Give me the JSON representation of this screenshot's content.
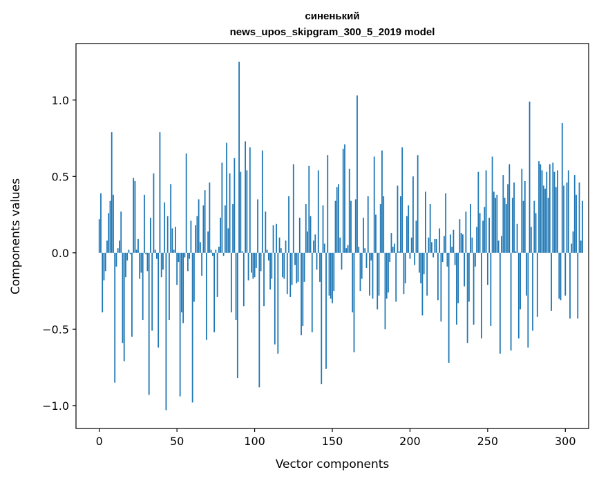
{
  "chart_data": {
    "type": "bar",
    "title": [
      "синенький",
      "news_upos_skipgram_300_5_2019 model"
    ],
    "xlabel": "Vector components",
    "ylabel": "Components values",
    "xlim": [
      -15,
      315
    ],
    "ylim": [
      -1.15,
      1.37
    ],
    "xticks": [
      0,
      50,
      100,
      150,
      200,
      250,
      300
    ],
    "yticks": [
      -1.0,
      -0.5,
      0.0,
      0.5,
      1.0
    ],
    "ytick_labels": [
      "−1.0",
      "−0.5",
      "0.0",
      "0.5",
      "1.0"
    ],
    "bar_color": "#1f77b4",
    "grid": false,
    "legend": "none",
    "x_start": 0,
    "values": [
      0.22,
      0.39,
      -0.39,
      -0.18,
      -0.12,
      0.08,
      0.26,
      0.34,
      0.79,
      0.38,
      -0.85,
      -0.09,
      0.03,
      0.08,
      0.27,
      -0.59,
      -0.71,
      -0.16,
      -0.05,
      0.02,
      -0.01,
      -0.55,
      0.49,
      0.47,
      0.02,
      0.09,
      -0.17,
      -0.13,
      -0.44,
      0.38,
      -0.01,
      -0.12,
      -0.93,
      0.23,
      -0.51,
      0.52,
      0.02,
      -0.04,
      -0.62,
      0.79,
      -0.16,
      -0.11,
      0.33,
      -1.03,
      0.24,
      -0.44,
      0.45,
      0.16,
      0.02,
      0.17,
      -0.21,
      -0.06,
      -0.94,
      -0.39,
      -0.46,
      -0.03,
      0.65,
      -0.12,
      -0.04,
      0.21,
      -0.98,
      -0.32,
      0.18,
      0.24,
      0.35,
      0.07,
      -0.15,
      0.31,
      0.41,
      -0.57,
      0.14,
      0.46,
      0.02,
      -0.02,
      -0.52,
      0.02,
      -0.29,
      0.04,
      0.23,
      0.59,
      -0.02,
      0.31,
      0.72,
      0.16,
      0.52,
      -0.39,
      0.32,
      0.62,
      -0.44,
      -0.82,
      1.25,
      0.53,
      0.01,
      -0.35,
      0.73,
      0.54,
      -0.18,
      0.69,
      -0.13,
      -0.17,
      -0.16,
      -0.1,
      0.35,
      -0.88,
      -0.12,
      0.67,
      -0.35,
      0.27,
      0.02,
      -0.05,
      -0.24,
      -0.17,
      0.18,
      -0.6,
      0.19,
      -0.66,
      0.1,
      0.03,
      -0.16,
      -0.17,
      0.08,
      -0.27,
      0.37,
      -0.29,
      -0.21,
      0.58,
      -0.08,
      -0.2,
      -0.19,
      0.23,
      -0.54,
      -0.48,
      -0.19,
      0.32,
      0.14,
      0.57,
      0.24,
      -0.52,
      0.08,
      0.12,
      -0.11,
      0.54,
      -0.19,
      -0.86,
      0.31,
      0.06,
      -0.76,
      0.64,
      -0.28,
      -0.3,
      -0.33,
      -0.25,
      0.34,
      0.43,
      0.45,
      0.1,
      -0.11,
      0.68,
      0.71,
      0.03,
      0.05,
      0.55,
      0.34,
      -0.39,
      -0.65,
      0.35,
      1.03,
      0.04,
      -0.25,
      -0.17,
      0.23,
      0.03,
      -0.1,
      0.37,
      -0.28,
      -0.05,
      -0.3,
      0.63,
      0.25,
      -0.37,
      -0.28,
      0.32,
      0.67,
      0.37,
      -0.5,
      -0.3,
      -0.26,
      -0.06,
      0.13,
      0.04,
      0.06,
      -0.32,
      0.44,
      0.01,
      0.37,
      0.69,
      -0.27,
      -0.2,
      0.24,
      0.31,
      -0.04,
      0.1,
      0.5,
      -0.08,
      0.21,
      0.64,
      -0.13,
      -0.2,
      -0.41,
      -0.14,
      0.4,
      -0.28,
      0.1,
      0.32,
      0.07,
      -0.03,
      0.09,
      0.09,
      -0.31,
      0.16,
      -0.45,
      -0.06,
      0.11,
      0.39,
      -0.09,
      -0.72,
      0.12,
      0.04,
      0.15,
      -0.08,
      -0.47,
      -0.33,
      0.22,
      0.13,
      0.12,
      -0.22,
      0.27,
      -0.59,
      -0.32,
      0.32,
      0.1,
      -0.47,
      -0.09,
      0.17,
      0.53,
      0.26,
      -0.56,
      0.21,
      0.3,
      0.54,
      -0.21,
      0.23,
      -0.48,
      0.63,
      0.4,
      0.36,
      0.38,
      0.08,
      -0.66,
      0.11,
      0.51,
      0.36,
      0.32,
      0.45,
      0.58,
      -0.64,
      0.36,
      0.46,
      0.01,
      0.19,
      -0.56,
      -0.37,
      0.55,
      0.34,
      0.47,
      -0.28,
      -0.62,
      0.99,
      0.17,
      -0.51,
      0.34,
      0.26,
      -0.42,
      0.6,
      0.58,
      0.54,
      0.44,
      0.42,
      0.53,
      0.36,
      0.58,
      -0.38,
      0.59,
      0.53,
      0.43,
      0.54,
      -0.3,
      -0.31,
      0.85,
      0.44,
      -0.28,
      0.46,
      0.54,
      -0.43,
      0.06,
      0.14,
      0.51,
      0.38,
      -0.43,
      0.46,
      0.08,
      0.34
    ]
  }
}
